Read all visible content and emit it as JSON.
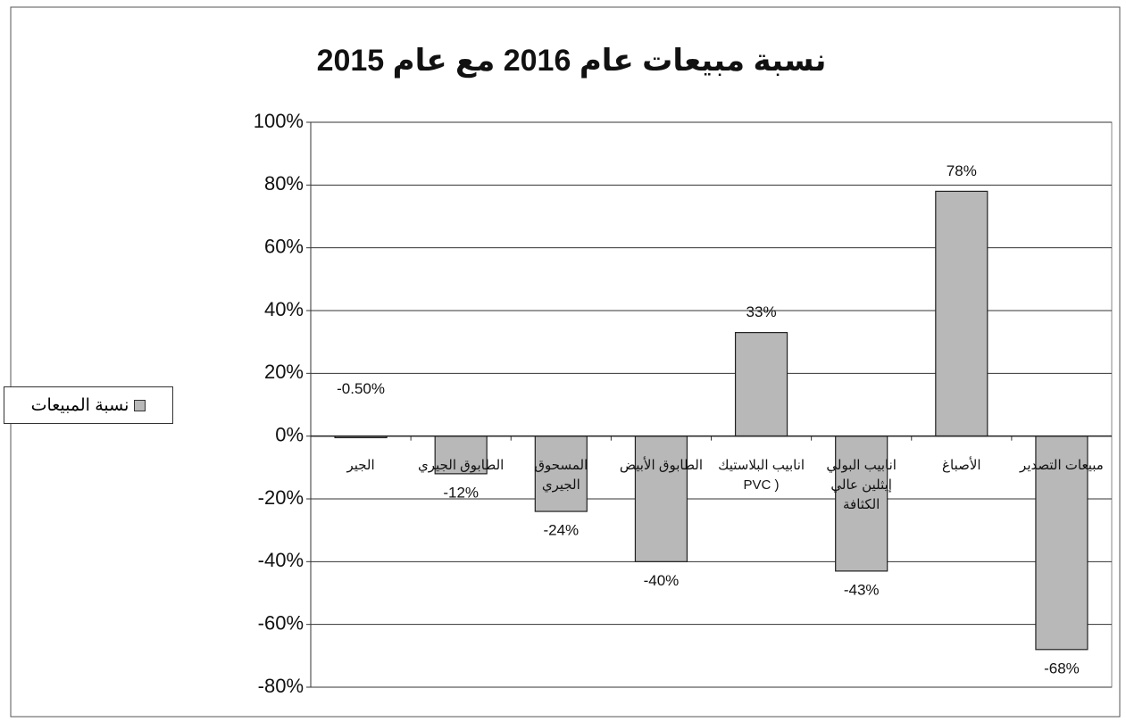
{
  "chart_data": {
    "type": "bar",
    "title": "نسبة مبيعات عام 2016 مع عام 2015",
    "categories": [
      "الجير",
      "الطابوق الجيري",
      "المسحوق الجيري",
      "الطابوق الأبيض",
      "انابيب البلاستيك ( PVC",
      "انابيب البولي إيثلين عالي الكثافة",
      "الأصباغ",
      "مبيعات التصدير"
    ],
    "series": [
      {
        "name": "نسبة المبيعات",
        "color": "#b8b8b8",
        "values": [
          -0.5,
          -12,
          -24,
          -40,
          33,
          -43,
          78,
          -68
        ],
        "value_labels": [
          "-0.50%",
          "-12%",
          "-24%",
          "-40%",
          "33%",
          "-43%",
          "78%",
          "-68%"
        ]
      }
    ],
    "ylim": [
      -80,
      100
    ],
    "yticks": [
      {
        "value": -80,
        "label": "-80%"
      },
      {
        "value": -60,
        "label": "-60%"
      },
      {
        "value": -40,
        "label": "-40%"
      },
      {
        "value": -20,
        "label": "-20%"
      },
      {
        "value": 0,
        "label": "0%"
      },
      {
        "value": 20,
        "label": "20%"
      },
      {
        "value": 40,
        "label": "40%"
      },
      {
        "value": 60,
        "label": "60%"
      },
      {
        "value": 80,
        "label": "80%"
      },
      {
        "value": 100,
        "label": "100%"
      }
    ],
    "grid": true,
    "legend": "left"
  }
}
